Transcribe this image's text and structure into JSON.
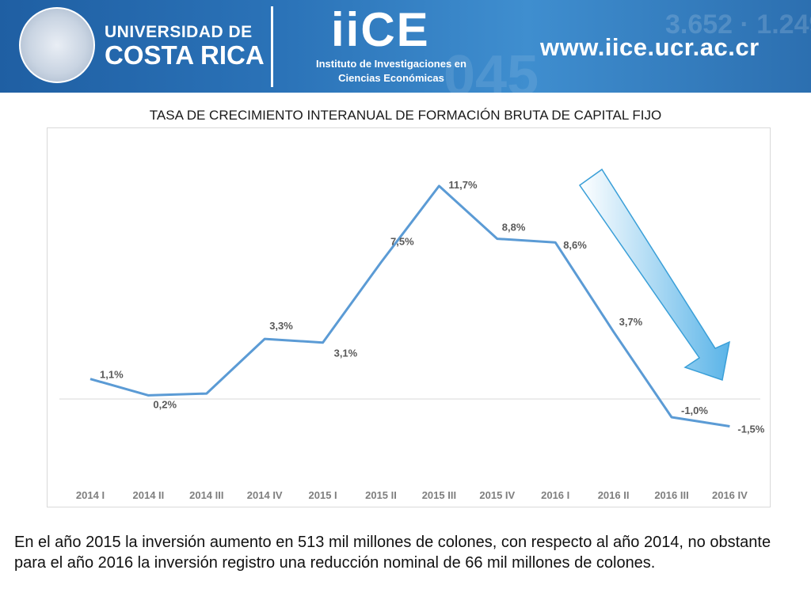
{
  "header": {
    "university_line1": "UNIVERSIDAD DE",
    "university_line2": "COSTA RICA",
    "iice": "iiCE",
    "institute_line1": "Instituto de Investigaciones en",
    "institute_line2": "Ciencias Económicas",
    "url": "www.iice.ucr.ac.cr",
    "banner_color": "#2b73b8"
  },
  "chart_data": {
    "type": "line",
    "title": "TASA DE CRECIMIENTO INTERANUAL DE FORMACIÓN BRUTA DE CAPITAL FIJO",
    "categories": [
      "2014 I",
      "2014 II",
      "2014 III",
      "2014 IV",
      "2015 I",
      "2015 II",
      "2015 III",
      "2015 IV",
      "2016 I",
      "2016 II",
      "2016 III",
      "2016 IV"
    ],
    "series": [
      {
        "values": [
          1.1,
          0.2,
          0.3,
          3.3,
          3.1,
          7.5,
          11.7,
          8.8,
          8.6,
          3.7,
          -1.0,
          -1.5
        ],
        "labels": [
          "1,1%",
          "0,2%",
          "",
          "3,3%",
          "3,1%",
          "7,5%",
          "11,7%",
          "8,8%",
          "8,6%",
          "3,7%",
          "-1,0%",
          "-1,5%"
        ],
        "color": "#5b9bd5"
      }
    ],
    "ylim": [
      -4,
      13
    ],
    "grid": false,
    "annotation": "downward-trend-arrow",
    "arrow_color": "#7ec8f0"
  },
  "caption": "En el año 2015 la inversión aumento en 513 mil millones de colones, con respecto al año 2014, no obstante para el año 2016 la inversión registro una reducción nominal de 66 mil millones de colones."
}
